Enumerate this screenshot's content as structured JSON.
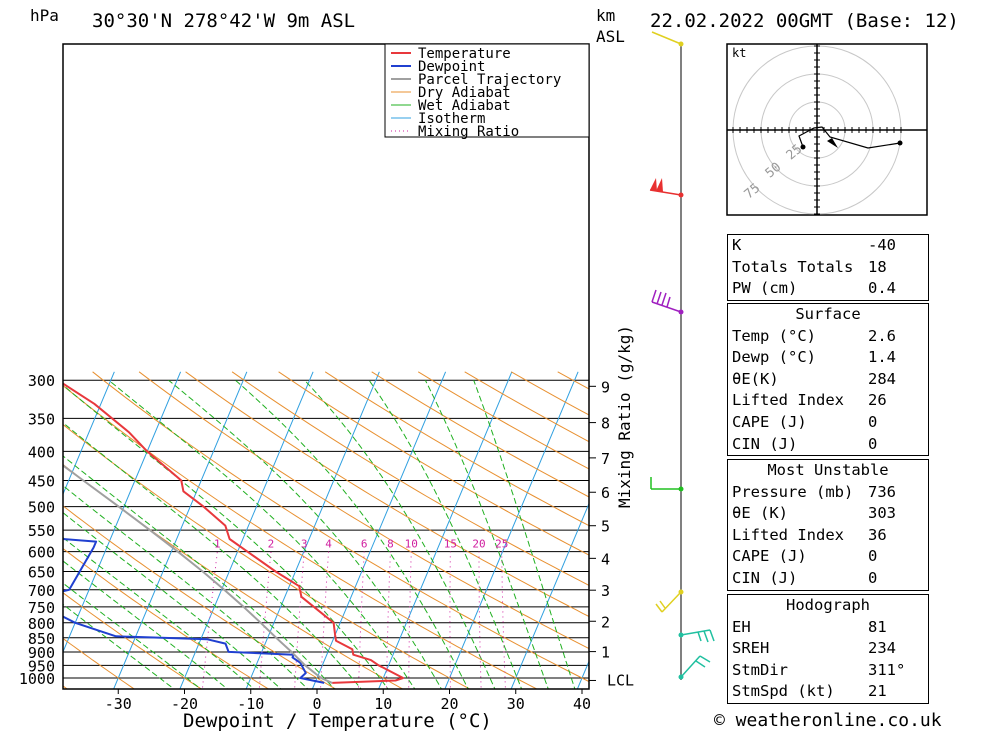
{
  "header": {
    "location": "30°30'N  278°42'W  9m  ASL",
    "hpa_label": "hPa",
    "km_label": "km",
    "asl_label": "ASL",
    "datetime": "22.02.2022  00GMT  (Base: 12)"
  },
  "colors": {
    "temperature": "#e8383c",
    "dewpoint": "#2040d0",
    "parcel": "#a0a0a0",
    "dry_adiabat": "#e89030",
    "wet_adiabat": "#20b020",
    "isotherm": "#30a0e0",
    "mixing_ratio": "#d020a0"
  },
  "chart_data": {
    "type": "line",
    "title": "Skew-T log-P diagram",
    "xlabel": "Dewpoint / Temperature (°C)",
    "ylabel": "hPa",
    "right_axis_label": "Mixing Ratio (g/kg)",
    "xlim": [
      -40,
      40
    ],
    "ylim": [
      1000,
      300
    ],
    "x_ticks": [
      "-30",
      "-20",
      "-10",
      "0",
      "10",
      "20",
      "30",
      "40"
    ],
    "pressure_levels": [
      "300",
      "350",
      "400",
      "450",
      "500",
      "550",
      "600",
      "650",
      "700",
      "750",
      "800",
      "850",
      "900",
      "950",
      "1000"
    ],
    "km_ticks": [
      {
        "km": 1,
        "label": "1"
      },
      {
        "km": 2,
        "label": "2"
      },
      {
        "km": 3,
        "label": "3"
      },
      {
        "km": 4,
        "label": "4"
      },
      {
        "km": 5,
        "label": "5"
      },
      {
        "km": 6,
        "label": "6"
      },
      {
        "km": 7,
        "label": "7"
      },
      {
        "km": 8,
        "label": "8"
      },
      {
        "km": 9,
        "label": "9"
      }
    ],
    "lcl_label": "LCL",
    "mixing_ratio_labels": [
      "1",
      "2",
      "3",
      "4",
      "6",
      "8",
      "10",
      "15",
      "20",
      "25"
    ],
    "legend": [
      "Temperature",
      "Dewpoint",
      "Parcel Trajectory",
      "Dry Adiabat",
      "Wet Adiabat",
      "Isotherm",
      "Mixing Ratio"
    ],
    "series": [
      {
        "name": "Temperature",
        "points": [
          {
            "p": 1020,
            "t": 2.6
          },
          {
            "p": 1010,
            "t": 12.0
          },
          {
            "p": 1000,
            "t": 13.0
          },
          {
            "p": 950,
            "t": 8.5
          },
          {
            "p": 930,
            "t": 7.0
          },
          {
            "p": 910,
            "t": 4.0
          },
          {
            "p": 890,
            "t": 3.5
          },
          {
            "p": 860,
            "t": 0.5
          },
          {
            "p": 840,
            "t": 0.0
          },
          {
            "p": 800,
            "t": -1.0
          },
          {
            "p": 750,
            "t": -5.0
          },
          {
            "p": 720,
            "t": -7.5
          },
          {
            "p": 690,
            "t": -8.5
          },
          {
            "p": 650,
            "t": -13.0
          },
          {
            "p": 600,
            "t": -18.5
          },
          {
            "p": 570,
            "t": -22.0
          },
          {
            "p": 540,
            "t": -23.5
          },
          {
            "p": 500,
            "t": -28.0
          },
          {
            "p": 470,
            "t": -32.0
          },
          {
            "p": 450,
            "t": -33.0
          },
          {
            "p": 400,
            "t": -40.0
          },
          {
            "p": 370,
            "t": -44.0
          },
          {
            "p": 330,
            "t": -51.0
          },
          {
            "p": 300,
            "t": -58.0
          }
        ]
      },
      {
        "name": "Dewpoint",
        "points": [
          {
            "p": 1020,
            "t": 1.4
          },
          {
            "p": 1000,
            "t": -2.5
          },
          {
            "p": 980,
            "t": -2.0
          },
          {
            "p": 940,
            "t": -3.5
          },
          {
            "p": 920,
            "t": -5.0
          },
          {
            "p": 910,
            "t": -5.0
          },
          {
            "p": 900,
            "t": -15.0
          },
          {
            "p": 870,
            "t": -16.0
          },
          {
            "p": 855,
            "t": -19.0
          },
          {
            "p": 845,
            "t": -33.0
          },
          {
            "p": 800,
            "t": -40.0
          },
          {
            "p": 740,
            "t": -47.0
          },
          {
            "p": 710,
            "t": -45.0
          },
          {
            "p": 700,
            "t": -43.0
          },
          {
            "p": 590,
            "t": -42.0
          },
          {
            "p": 576,
            "t": -42.0
          },
          {
            "p": 560,
            "t": -56.0
          },
          {
            "p": 550,
            "t": -64.0
          },
          {
            "p": 500,
            "t": -68.0
          },
          {
            "p": 470,
            "t": -70.0
          },
          {
            "p": 430,
            "t": -74.0
          },
          {
            "p": 400,
            "t": -74.0
          },
          {
            "p": 345,
            "t": -77.0
          },
          {
            "p": 320,
            "t": -76.0
          },
          {
            "p": 300,
            "t": -80.0
          }
        ]
      },
      {
        "name": "Parcel Trajectory",
        "points": [
          {
            "p": 1020,
            "t": 2.6
          },
          {
            "p": 1000,
            "t": 0.6
          },
          {
            "p": 950,
            "t": -2.6
          },
          {
            "p": 900,
            "t": -5.5
          },
          {
            "p": 850,
            "t": -8.7
          },
          {
            "p": 800,
            "t": -12.0
          },
          {
            "p": 750,
            "t": -15.6
          },
          {
            "p": 700,
            "t": -19.6
          },
          {
            "p": 650,
            "t": -24.0
          },
          {
            "p": 600,
            "t": -29.0
          },
          {
            "p": 550,
            "t": -34.6
          },
          {
            "p": 500,
            "t": -40.8
          },
          {
            "p": 450,
            "t": -47.8
          },
          {
            "p": 400,
            "t": -55.6
          },
          {
            "p": 350,
            "t": -64.4
          },
          {
            "p": 300,
            "t": -74.0
          }
        ]
      }
    ]
  },
  "hodograph": {
    "unit": "kt",
    "ring_labels": [
      "25",
      "50",
      "75"
    ]
  },
  "indices": {
    "general": [
      {
        "label": "K",
        "value": "-40"
      },
      {
        "label": "Totals Totals",
        "value": "18"
      },
      {
        "label": "PW (cm)",
        "value": "0.4"
      }
    ],
    "surface": {
      "title": "Surface",
      "rows": [
        {
          "label": "Temp (°C)",
          "value": "2.6"
        },
        {
          "label": "Dewp (°C)",
          "value": "1.4"
        },
        {
          "label": "θE(K)",
          "value": "284"
        },
        {
          "label": "Lifted Index",
          "value": "26"
        },
        {
          "label": "CAPE (J)",
          "value": "0"
        },
        {
          "label": "CIN (J)",
          "value": "0"
        }
      ]
    },
    "most_unstable": {
      "title": "Most Unstable",
      "rows": [
        {
          "label": "Pressure (mb)",
          "value": "736"
        },
        {
          "label": "θE (K)",
          "value": "303"
        },
        {
          "label": "Lifted Index",
          "value": "36"
        },
        {
          "label": "CAPE (J)",
          "value": "0"
        },
        {
          "label": "CIN (J)",
          "value": "0"
        }
      ]
    },
    "hodograph": {
      "title": "Hodograph",
      "rows": [
        {
          "label": "EH",
          "value": "81"
        },
        {
          "label": "SREH",
          "value": "234"
        },
        {
          "label": "StmDir",
          "value": "311°"
        },
        {
          "label": "StmSpd (kt)",
          "value": "21"
        }
      ]
    }
  },
  "footer": {
    "copyright": "© weatheronline.co.uk"
  }
}
